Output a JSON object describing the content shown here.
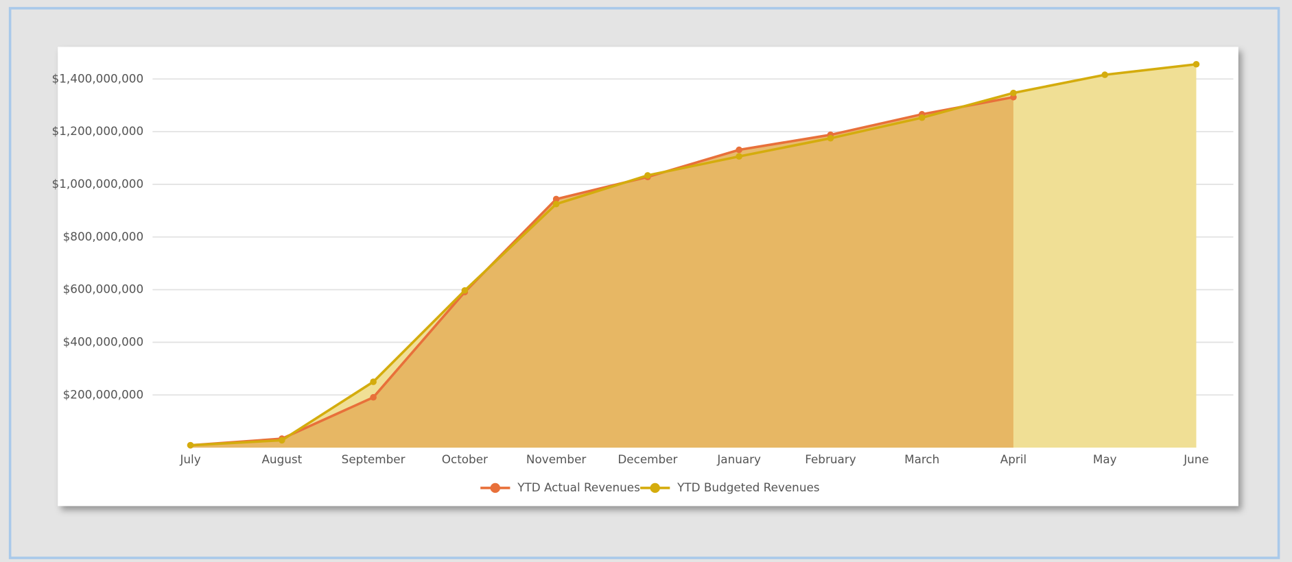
{
  "chart_data": {
    "type": "area",
    "categories": [
      "July",
      "August",
      "September",
      "October",
      "November",
      "December",
      "January",
      "February",
      "March",
      "April",
      "May",
      "June"
    ],
    "series": [
      {
        "name": "YTD Actual Revenues",
        "color": "#e8703a",
        "fill": "#e6b25e",
        "values": [
          9000000,
          34000000,
          191000000,
          591000000,
          944000000,
          1028000000,
          1131000000,
          1188000000,
          1266000000,
          1331000000,
          null,
          null
        ]
      },
      {
        "name": "YTD Budgeted Revenues",
        "color": "#d4ac0d",
        "fill": "#f0df95",
        "values": [
          9000000,
          28000000,
          250000000,
          597000000,
          925000000,
          1034000000,
          1106000000,
          1175000000,
          1253000000,
          1347000000,
          1416000000,
          1456000000
        ]
      }
    ],
    "ylim": [
      0,
      1500000000
    ],
    "yticks": [
      {
        "value": 200000000,
        "label": "$200,000,000"
      },
      {
        "value": 400000000,
        "label": "$400,000,000"
      },
      {
        "value": 600000000,
        "label": "$600,000,000"
      },
      {
        "value": 800000000,
        "label": "$800,000,000"
      },
      {
        "value": 1000000000,
        "label": "$1,000,000,000"
      },
      {
        "value": 1200000000,
        "label": "$1,200,000,000"
      },
      {
        "value": 1400000000,
        "label": "$1,400,000,000"
      }
    ],
    "grid": true,
    "legend": "bottom"
  }
}
